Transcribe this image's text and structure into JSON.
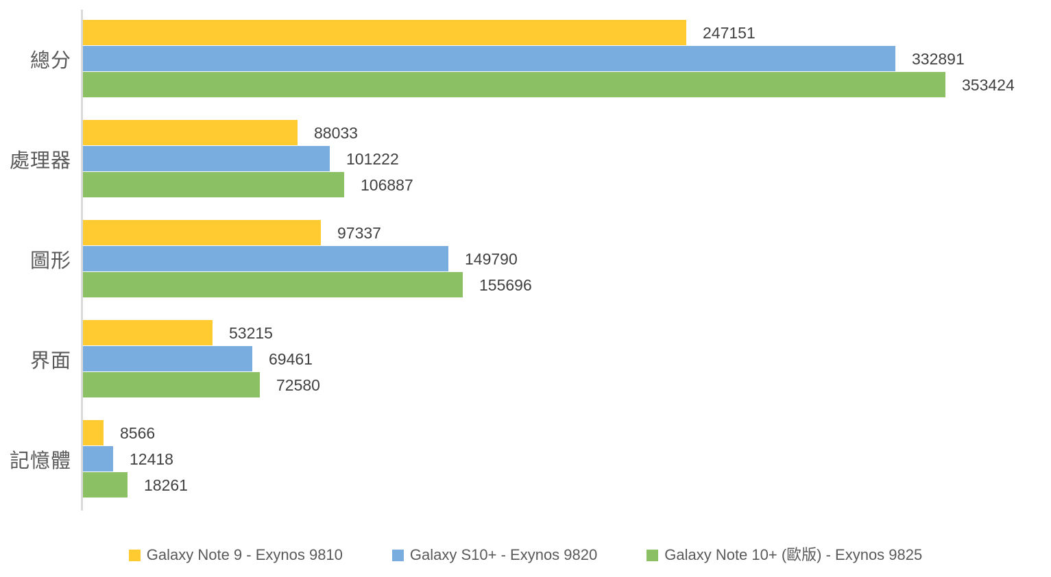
{
  "chart_data": {
    "type": "bar",
    "orientation": "horizontal",
    "title": "",
    "xlabel": "",
    "ylabel": "",
    "categories": [
      "總分",
      "處理器",
      "圖形",
      "界面",
      "記憶體"
    ],
    "series": [
      {
        "name": "Galaxy Note 9 - Exynos 9810",
        "color": "#FFCB31",
        "values": [
          247151,
          88033,
          97337,
          53215,
          8566
        ]
      },
      {
        "name": "Galaxy S10+ - Exynos 9820",
        "color": "#79ACDF",
        "values": [
          332891,
          101222,
          149790,
          69461,
          12418
        ]
      },
      {
        "name": "Galaxy Note 10+ (歐版) - Exynos 9825",
        "color": "#8BC164",
        "values": [
          353424,
          106887,
          155696,
          72580,
          18261
        ]
      }
    ],
    "xlim": [
      0,
      355000
    ],
    "grid": false,
    "data_labels": true,
    "legend_position": "bottom"
  },
  "colors": {
    "background": "#FFFFFF",
    "axis_line": "#D9D9D9",
    "category_text": "#595959",
    "value_text": "#404040",
    "legend_text": "#595959"
  }
}
